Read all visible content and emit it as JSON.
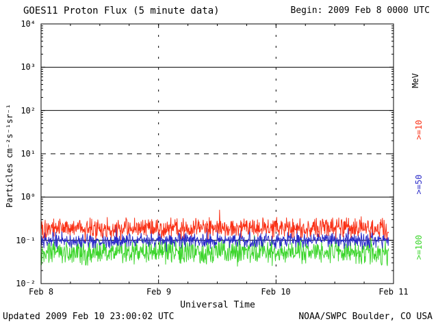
{
  "footer": {
    "updated": "Updated 2009 Feb 10 23:00:02 UTC",
    "source": "NOAA/SWPC Boulder, CO USA"
  },
  "chart_data": {
    "type": "line",
    "title": "GOES11 Proton Flux (5 minute data)",
    "begin_label": "Begin: 2009 Feb 8 0000 UTC",
    "xlabel": "Universal Time",
    "ylabel": "Particles cm⁻²s⁻¹sr⁻¹",
    "right_axis_label": "MeV",
    "x_ticks": [
      "Feb 8",
      "Feb 9",
      "Feb 10",
      "Feb 11"
    ],
    "y_tick_labels": [
      "10⁴",
      "10³",
      "10²",
      "10¹",
      "10⁰",
      "10⁻¹",
      "10⁻²"
    ],
    "y_log10_range": [
      -2,
      4
    ],
    "x_range_days": 3,
    "y_scale": "log",
    "grid": {
      "solid_decades": [
        3,
        2,
        0,
        -1
      ],
      "dashed_decades": [
        1
      ],
      "day_lines": [
        1,
        2
      ]
    },
    "legend_position": "right",
    "series": [
      {
        "name": ">=10",
        "unit": "MeV",
        "color": "#fa3015",
        "approx_log10_mean": -0.72,
        "approx_log10_spread": 0.28,
        "approx_range": [
          0.095,
          0.5
        ],
        "points_per_day": 288,
        "data_end_day": 2.958
      },
      {
        "name": ">=50",
        "unit": "MeV",
        "color": "#2a2ac8",
        "approx_log10_mean": -1.01,
        "approx_log10_spread": 0.2,
        "approx_range": [
          0.055,
          0.22
        ],
        "points_per_day": 288,
        "data_end_day": 2.958
      },
      {
        "name": ">=100",
        "unit": "MeV",
        "color": "#3cd52c",
        "approx_log10_mean": -1.28,
        "approx_log10_spread": 0.33,
        "approx_range": [
          0.022,
          0.13
        ],
        "points_per_day": 288,
        "data_end_day": 2.958
      }
    ]
  }
}
